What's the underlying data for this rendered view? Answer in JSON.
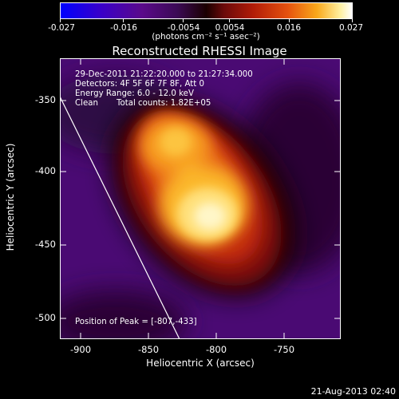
{
  "colorbar": {
    "ticks": [
      "-0.027",
      "-0.016",
      "-0.0054",
      "0.0054",
      "0.016",
      "0.027"
    ],
    "units": "(photons cm⁻² s⁻¹ asec⁻²)"
  },
  "title": "Reconstructed RHESSI Image",
  "info": {
    "line1": "29-Dec-2011 21:22:20.000 to 21:27:34.000",
    "line2": "Detectors: 4F 5F 6F 7F 8F, Att 0",
    "line3": "Energy Range: 6.0 - 12.0 keV",
    "line4_a": "Clean",
    "line4_b": "Total counts: 1.82E+05"
  },
  "peak_label": "Position of Peak = [-807,-433]",
  "axes": {
    "xlabel": "Heliocentric X (arcsec)",
    "ylabel": "Heliocentric Y (arcsec)",
    "xticks": [
      "-900",
      "-850",
      "-800",
      "-750"
    ],
    "yticks": [
      "-350",
      "-400",
      "-450",
      "-500"
    ]
  },
  "timestamp": "21-Aug-2013 02:40",
  "chart_data": {
    "type": "heatmap",
    "title": "Reconstructed RHESSI Image",
    "xlabel": "Heliocentric X (arcsec)",
    "ylabel": "Heliocentric Y (arcsec)",
    "xlim": [
      -910,
      -720
    ],
    "ylim": [
      -515,
      -335
    ],
    "color_range": [
      -0.027,
      0.027
    ],
    "peak": [
      -807,
      -433
    ]
  }
}
